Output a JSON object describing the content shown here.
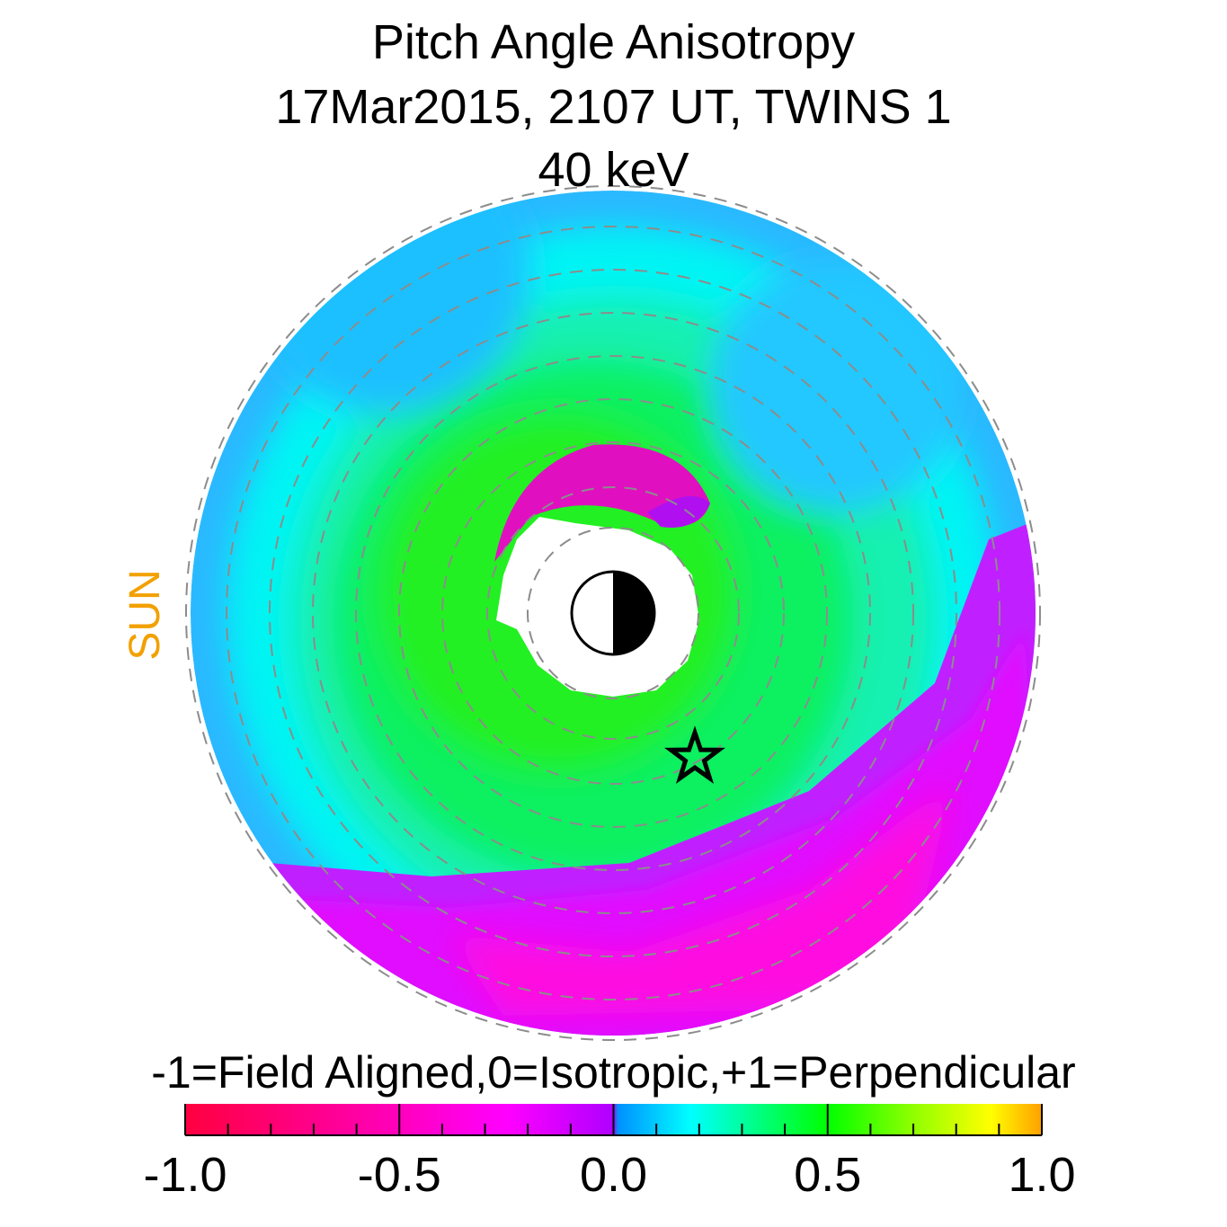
{
  "title": [
    "Pitch Angle Anisotropy",
    "17Mar2015, 2107 UT,  TWINS 1",
    "40 keV"
  ],
  "sun_label": "SUN",
  "colors": {
    "sun_label": "#f2a000",
    "grid": "#8c8c8c"
  },
  "chart_data": {
    "type": "heatmap",
    "title": "Pitch Angle Anisotropy",
    "subtitle": "17Mar2015, 2107 UT,  TWINS 1",
    "energy": "40 keV",
    "projection": "polar (equatorial plane), Sun to the left",
    "grid": "dashed concentric rings",
    "markers": [
      "earth-day-night-disk",
      "star-marker"
    ],
    "colorbar": {
      "label": "-1=Field Aligned,0=Isotropic,+1=Perpendicular",
      "range": [
        -1.0,
        1.0
      ],
      "ticks": [
        -1.0,
        -0.5,
        0.0,
        0.5,
        1.0
      ],
      "tick_labels": [
        "-1.0",
        "-0.5",
        "0.0",
        "0.5",
        "1.0"
      ],
      "stops": [
        {
          "value": -1.0,
          "color": "#ff0040"
        },
        {
          "value": -0.55,
          "color": "#ff00b0"
        },
        {
          "value": -0.25,
          "color": "#ff00ff"
        },
        {
          "value": 0.0,
          "color": "#b000ff"
        },
        {
          "value": 0.01,
          "color": "#0090ff"
        },
        {
          "value": 0.18,
          "color": "#00ffff"
        },
        {
          "value": 0.5,
          "color": "#00ff00"
        },
        {
          "value": 0.7,
          "color": "#90ff00"
        },
        {
          "value": 0.88,
          "color": "#ffff00"
        },
        {
          "value": 1.0,
          "color": "#ffa000"
        }
      ]
    }
  }
}
